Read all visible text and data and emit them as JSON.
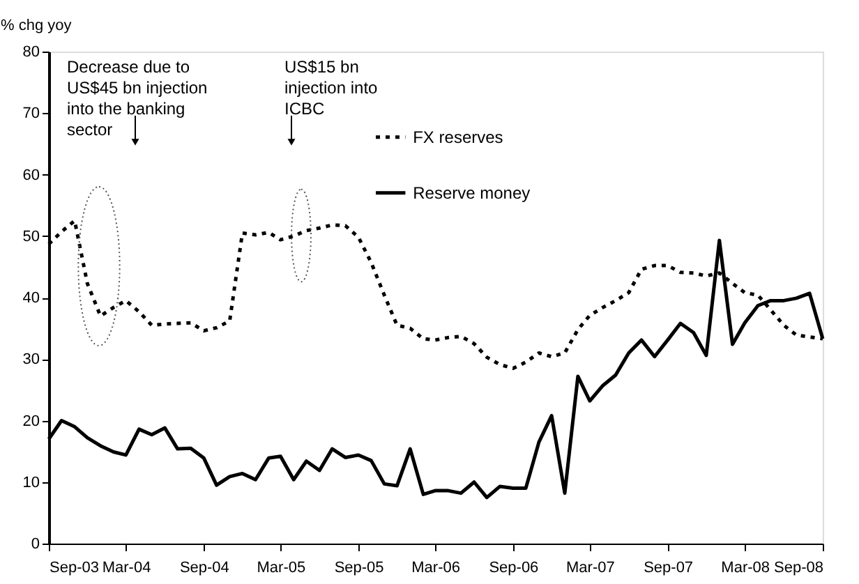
{
  "chart_data": {
    "type": "line",
    "ylabel": "% chg yoy",
    "x": [
      "2003-09",
      "2003-10",
      "2003-11",
      "2003-12",
      "2004-01",
      "2004-02",
      "2004-03",
      "2004-04",
      "2004-05",
      "2004-06",
      "2004-07",
      "2004-08",
      "2004-09",
      "2004-10",
      "2004-11",
      "2004-12",
      "2005-01",
      "2005-02",
      "2005-03",
      "2005-04",
      "2005-05",
      "2005-06",
      "2005-07",
      "2005-08",
      "2005-09",
      "2005-10",
      "2005-11",
      "2005-12",
      "2006-01",
      "2006-02",
      "2006-03",
      "2006-04",
      "2006-05",
      "2006-06",
      "2006-07",
      "2006-08",
      "2006-09",
      "2006-10",
      "2006-11",
      "2006-12",
      "2007-01",
      "2007-02",
      "2007-03",
      "2007-04",
      "2007-05",
      "2007-06",
      "2007-07",
      "2007-08",
      "2007-09",
      "2007-10",
      "2007-11",
      "2007-12",
      "2008-01",
      "2008-02",
      "2008-03",
      "2008-04",
      "2008-05",
      "2008-06",
      "2008-07",
      "2008-08",
      "2008-09"
    ],
    "series": [
      {
        "name": "FX reserves",
        "color": "#000000",
        "line_style": "dashed",
        "values": [
          48.7,
          50.7,
          52.5,
          42.3,
          37.0,
          38.4,
          39.5,
          37.7,
          35.5,
          35.7,
          35.8,
          35.9,
          34.6,
          35.1,
          36.2,
          50.5,
          50.2,
          50.6,
          49.4,
          50.0,
          50.9,
          51.3,
          51.8,
          51.7,
          49.8,
          45.7,
          40.4,
          35.5,
          35.0,
          33.3,
          33.1,
          33.5,
          33.7,
          32.5,
          30.3,
          29.1,
          28.5,
          29.5,
          31.0,
          30.4,
          31.0,
          34.8,
          37.1,
          38.4,
          39.5,
          40.8,
          44.6,
          45.2,
          45.2,
          44.1,
          44.0,
          43.5,
          44.0,
          42.3,
          40.8,
          40.4,
          38.0,
          35.5,
          33.9,
          33.6,
          33.3
        ]
      },
      {
        "name": "Reserve money",
        "color": "#000000",
        "line_style": "solid",
        "values": [
          17.0,
          20.0,
          19.0,
          17.2,
          15.9,
          14.9,
          14.4,
          18.6,
          17.7,
          18.8,
          15.4,
          15.5,
          13.9,
          9.5,
          10.9,
          11.4,
          10.4,
          13.9,
          14.2,
          10.4,
          13.4,
          11.9,
          15.4,
          14.0,
          14.4,
          13.5,
          9.7,
          9.4,
          15.4,
          8.0,
          8.6,
          8.6,
          8.2,
          10.0,
          7.5,
          9.3,
          9.0,
          9.0,
          16.5,
          20.8,
          8.2,
          27.2,
          23.2,
          25.7,
          27.4,
          31.0,
          33.1,
          30.4,
          33.1,
          35.8,
          34.3,
          30.6,
          49.3,
          32.4,
          35.9,
          38.7,
          39.5,
          39.5,
          39.9,
          40.7,
          33.3
        ]
      }
    ],
    "xlim": [
      "2003-09",
      "2008-09"
    ],
    "xticks": [
      {
        "value": "2003-09",
        "label": "Sep-03"
      },
      {
        "value": "2004-03",
        "label": "Mar-04"
      },
      {
        "value": "2004-09",
        "label": "Sep-04"
      },
      {
        "value": "2005-03",
        "label": "Mar-05"
      },
      {
        "value": "2005-09",
        "label": "Sep-05"
      },
      {
        "value": "2006-03",
        "label": "Mar-06"
      },
      {
        "value": "2006-09",
        "label": "Sep-06"
      },
      {
        "value": "2007-03",
        "label": "Mar-07"
      },
      {
        "value": "2007-09",
        "label": "Sep-07"
      },
      {
        "value": "2008-03",
        "label": "Mar-08"
      },
      {
        "value": "2008-09",
        "label": "Sep-08"
      }
    ],
    "ylim": [
      0,
      80
    ],
    "yticks": [
      0,
      10,
      20,
      30,
      40,
      50,
      60,
      70,
      80
    ],
    "grid": false,
    "legend": "top right",
    "marker": "none",
    "annotations": [
      "Decrease due to\nUS$45 bn injection\ninto the banking\nsector",
      "US$15 bn\ninjection into\nICBC"
    ]
  }
}
